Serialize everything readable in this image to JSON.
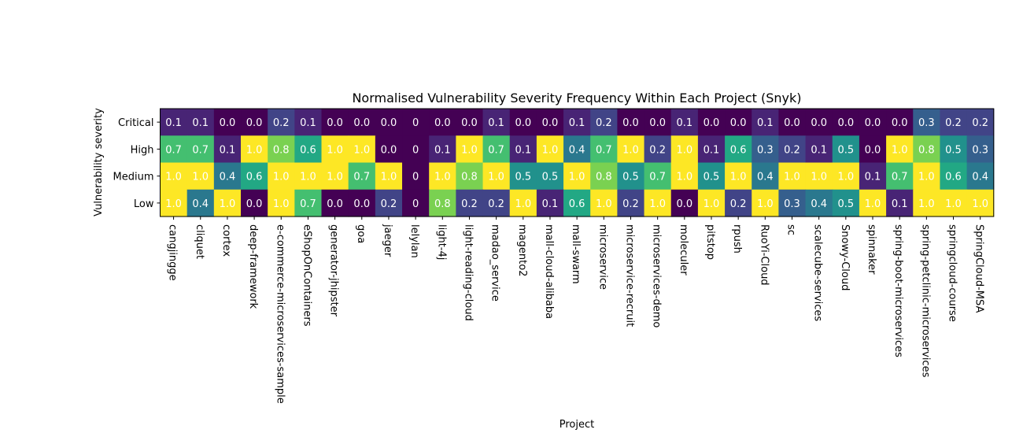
{
  "chart_data": {
    "type": "heatmap",
    "title": "Normalised Vulnerability Severity Frequency Within Each Project (Snyk)",
    "xlabel": "Project",
    "ylabel": "Vulnerability severity",
    "colormap": "viridis",
    "value_range": [
      0,
      1
    ],
    "grid": false,
    "legend": "none",
    "rows": [
      "Critical",
      "High",
      "Medium",
      "Low"
    ],
    "columns": [
      "cangjingge",
      "cliquet",
      "cortex",
      "deep-framework",
      "e-commerce-microservices-sample",
      "eShopOnContainers",
      "generator-jhipster",
      "goa",
      "jaeger",
      "lelylan",
      "light-4j",
      "light-reading-cloud",
      "madao_service",
      "magento2",
      "mall-cloud-alibaba",
      "mall-swarm",
      "microservice",
      "microservice-recruit",
      "microservices-demo",
      "moleculer",
      "pitstop",
      "rpush",
      "RuoYi-Cloud",
      "sc",
      "scalecube-services",
      "Snowy-Cloud",
      "spinnaker",
      "spring-boot-microservices",
      "spring-petclinic-microservices",
      "springcloud-course",
      "SpringCloud-MSA"
    ],
    "values": [
      [
        "0.1",
        "0.1",
        "0.0",
        "0.0",
        "0.2",
        "0.1",
        "0.0",
        "0.0",
        "0.0",
        "0",
        "0.0",
        "0.0",
        "0.1",
        "0.0",
        "0.0",
        "0.1",
        "0.2",
        "0.0",
        "0.0",
        "0.1",
        "0.0",
        "0.0",
        "0.1",
        "0.0",
        "0.0",
        "0.0",
        "0.0",
        "0.0",
        "0.3",
        "0.2",
        "0.2"
      ],
      [
        "0.7",
        "0.7",
        "0.1",
        "1.0",
        "0.8",
        "0.6",
        "1.0",
        "1.0",
        "0.0",
        "0",
        "0.1",
        "1.0",
        "0.7",
        "0.1",
        "1.0",
        "0.4",
        "0.7",
        "1.0",
        "0.2",
        "1.0",
        "0.1",
        "0.6",
        "0.3",
        "0.2",
        "0.1",
        "0.5",
        "0.0",
        "1.0",
        "0.8",
        "0.5",
        "0.3"
      ],
      [
        "1.0",
        "1.0",
        "0.4",
        "0.6",
        "1.0",
        "1.0",
        "1.0",
        "0.7",
        "1.0",
        "0",
        "1.0",
        "0.8",
        "1.0",
        "0.5",
        "0.5",
        "1.0",
        "0.8",
        "0.5",
        "0.7",
        "1.0",
        "0.5",
        "1.0",
        "0.4",
        "1.0",
        "1.0",
        "1.0",
        "0.1",
        "0.7",
        "1.0",
        "0.6",
        "0.4"
      ],
      [
        "1.0",
        "0.4",
        "1.0",
        "0.0",
        "1.0",
        "0.7",
        "0.0",
        "0.0",
        "0.2",
        "0",
        "0.8",
        "0.2",
        "0.2",
        "1.0",
        "0.1",
        "0.6",
        "1.0",
        "0.2",
        "1.0",
        "0.0",
        "1.0",
        "0.2",
        "1.0",
        "0.3",
        "0.4",
        "0.5",
        "1.0",
        "0.1",
        "1.0",
        "1.0",
        "1.0"
      ]
    ]
  }
}
